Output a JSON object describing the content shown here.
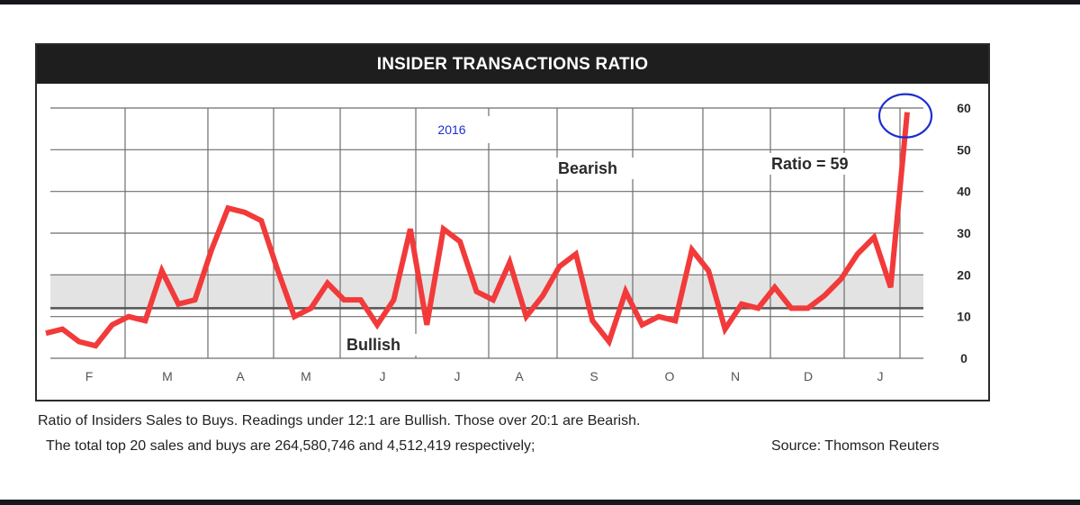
{
  "colors": {
    "line": "#f23a3a",
    "neutral_band": "#e3e3e3",
    "grid": "#6e6e6e",
    "threshold_line": "#555555",
    "annotation_circle": "#1a2fd0",
    "year_label": "#1a2fd0"
  },
  "chart_data": {
    "type": "line",
    "title": "INSIDER TRANSACTIONS RATIO",
    "year_label": "2016",
    "xlabel": "",
    "ylabel": "",
    "ylim": [
      0,
      60
    ],
    "y_ticks": [
      "0",
      "10",
      "20",
      "30",
      "40",
      "50",
      "60"
    ],
    "months": [
      "F",
      "M",
      "A",
      "M",
      "J",
      "J",
      "A",
      "S",
      "O",
      "N",
      "D",
      "J"
    ],
    "neutral_band": [
      12,
      20
    ],
    "threshold_line": 12,
    "grid": true,
    "series": [
      {
        "values": [
          6,
          7,
          4,
          3,
          8,
          10,
          9,
          21,
          13,
          14,
          26,
          36,
          35,
          33,
          21,
          10,
          12,
          18,
          14,
          14,
          8,
          14,
          31,
          8,
          31,
          28,
          16,
          14,
          23,
          10,
          15,
          22,
          25,
          9,
          4,
          16,
          8,
          10,
          9,
          26,
          21,
          7,
          13,
          12,
          17,
          12,
          12,
          15,
          19,
          25,
          29,
          17,
          59
        ]
      }
    ],
    "annotations": {
      "bearish": "Bearish",
      "bullish": "Bullish",
      "ratio": "Ratio = 59"
    }
  },
  "captions": {
    "line1": "Ratio of Insiders Sales to Buys. Readings under 12:1 are Bullish. Those over 20:1 are Bearish.",
    "line2": "The total top 20 sales and buys are 264,580,746 and 4,512,419 respectively;",
    "source": "Source: Thomson Reuters"
  }
}
